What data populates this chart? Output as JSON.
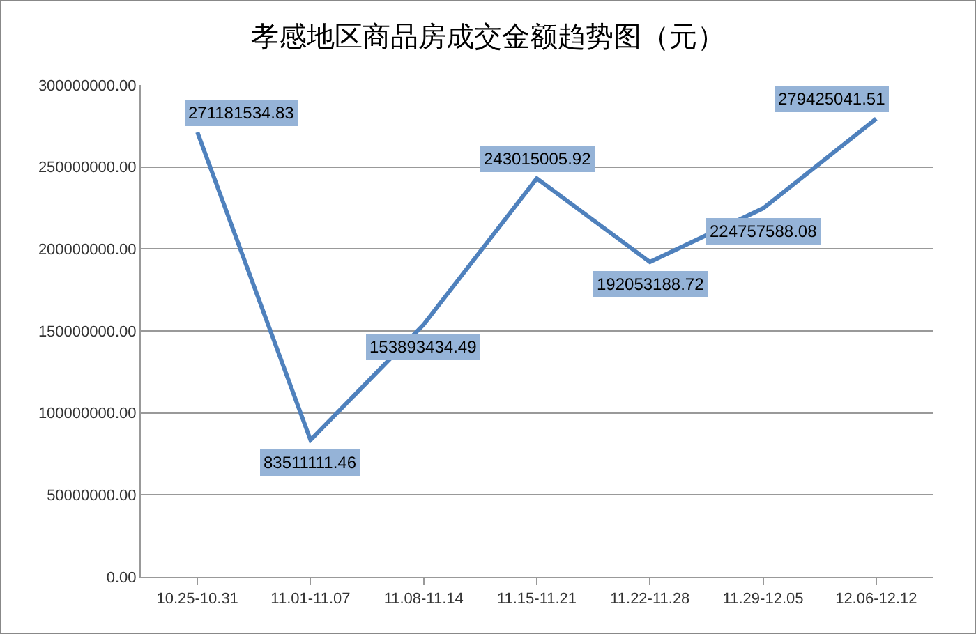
{
  "chart_data": {
    "type": "line",
    "title": "孝感地区商品房成交金额趋势图（元）",
    "categories": [
      "10.25-10.31",
      "11.01-11.07",
      "11.08-11.14",
      "11.15-11.21",
      "11.22-11.28",
      "11.29-12.05",
      "12.06-12.12"
    ],
    "series": [
      {
        "color": "#4f81bd",
        "values": [
          271181534.83,
          83511111.46,
          153893434.49,
          243015005.92,
          192053188.72,
          224757588.08,
          279425041.51
        ]
      }
    ],
    "ylim": [
      0,
      300000000
    ],
    "yticks": [
      {
        "value": 0,
        "label": "0.00"
      },
      {
        "value": 50000000,
        "label": "50000000.00"
      },
      {
        "value": 100000000,
        "label": "100000000.00"
      },
      {
        "value": 150000000,
        "label": "150000000.00"
      },
      {
        "value": 200000000,
        "label": "200000000.00"
      },
      {
        "value": 250000000,
        "label": "250000000.00"
      },
      {
        "value": 300000000,
        "label": "300000000.00"
      }
    ],
    "grid": "y",
    "marker": "none",
    "line_style": "solid",
    "data_labels": true
  }
}
